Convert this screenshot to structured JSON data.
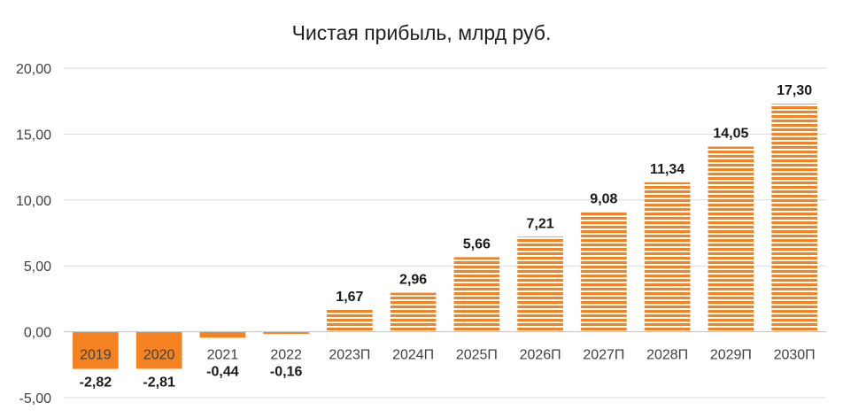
{
  "chart_data": {
    "type": "bar",
    "title": "Чистая прибыль, млрд руб.",
    "xlabel": "",
    "ylabel": "",
    "categories": [
      "2019",
      "2020",
      "2021",
      "2022",
      "2023П",
      "2024П",
      "2025П",
      "2026П",
      "2027П",
      "2028П",
      "2029П",
      "2030П"
    ],
    "values": [
      -2.82,
      -2.81,
      -0.44,
      -0.16,
      1.67,
      2.96,
      5.66,
      7.21,
      9.08,
      11.34,
      14.05,
      17.3
    ],
    "data_labels": [
      "-2,82",
      "-2,81",
      "-0,44",
      "-0,16",
      "1,67",
      "2,96",
      "5,66",
      "7,21",
      "9,08",
      "11,34",
      "14,05",
      "17,30"
    ],
    "bar_style": [
      "solid",
      "solid",
      "solid",
      "solid",
      "striped",
      "striped",
      "striped",
      "striped",
      "striped",
      "striped",
      "striped",
      "striped"
    ],
    "ylim": [
      -5,
      20
    ],
    "yticks": [
      -5,
      0,
      5,
      10,
      15,
      20
    ],
    "ytick_labels": [
      "-5,00",
      "0,00",
      "5,00",
      "10,00",
      "15,00",
      "20,00"
    ],
    "grid": true,
    "legend": "none",
    "colors": {
      "bar": "#F58220",
      "grid": "#d9d9d9",
      "axis": "#bfbfbf",
      "stripe_gap": "#ffffff"
    }
  }
}
